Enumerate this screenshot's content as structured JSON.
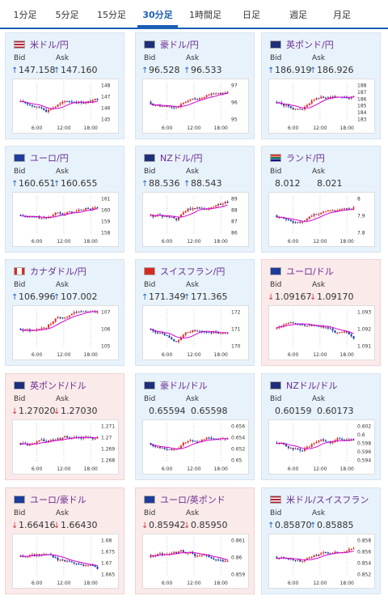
{
  "tabs": [
    {
      "label": "1分足",
      "active": false
    },
    {
      "label": "5分足",
      "active": false
    },
    {
      "label": "15分足",
      "active": false
    },
    {
      "label": "30分足",
      "active": true
    },
    {
      "label": "1時間足",
      "active": false
    },
    {
      "label": "日足",
      "active": false
    },
    {
      "label": "週足",
      "active": false
    },
    {
      "label": "月足",
      "active": false
    }
  ],
  "labels": {
    "bid": "Bid",
    "ask": "Ask"
  },
  "colors": {
    "up_card": "#e8f2fb",
    "down_card": "#fbeaea",
    "candle_up": "#d32f2f",
    "candle_down": "#1a3aa0",
    "ma": "#d400d4",
    "accent": "#1a5fb4"
  },
  "cards": [
    {
      "pair": "米ドル/円",
      "flag": "us-flag",
      "dir": "up",
      "bid": "147.158",
      "ask": "147.160",
      "chart_data": {
        "type": "candlestick",
        "x_ticks": [
          "6:00",
          "12:00",
          "18:00"
        ],
        "y_ticks": [
          "145",
          "146",
          "147",
          "148"
        ],
        "trend": "up"
      }
    },
    {
      "pair": "豪ドル/円",
      "flag": "au-flag",
      "dir": "up",
      "bid": "96.528",
      "ask": "96.533",
      "chart_data": {
        "type": "candlestick",
        "x_ticks": [
          "6:00",
          "12:00",
          "18:00"
        ],
        "y_ticks": [
          "95",
          "96",
          "97"
        ],
        "trend": "up"
      }
    },
    {
      "pair": "英ポンド/円",
      "flag": "gb-flag",
      "dir": "up",
      "bid": "186.919",
      "ask": "186.926",
      "chart_data": {
        "type": "candlestick",
        "x_ticks": [
          "6:00",
          "12:00",
          "18:00"
        ],
        "y_ticks": [
          "183",
          "184",
          "185",
          "186",
          "187",
          "188"
        ],
        "trend": "up"
      }
    },
    {
      "pair": "ユーロ/円",
      "flag": "eu-flag",
      "dir": "up",
      "bid": "160.651",
      "ask": "160.655",
      "chart_data": {
        "type": "candlestick",
        "x_ticks": [
          "6:00",
          "12:00",
          "18:00"
        ],
        "y_ticks": [
          "158",
          "159",
          "160",
          "161"
        ],
        "trend": "up"
      }
    },
    {
      "pair": "NZドル/円",
      "flag": "nz-flag",
      "dir": "up",
      "bid": "88.536",
      "ask": "88.543",
      "chart_data": {
        "type": "candlestick",
        "x_ticks": [
          "6:00",
          "12:00",
          "18:00"
        ],
        "y_ticks": [
          "86",
          "87",
          "88",
          "89"
        ],
        "trend": "up"
      }
    },
    {
      "pair": "ランド/円",
      "flag": "za-flag",
      "dir": "none",
      "bid": "8.012",
      "ask": "8.021",
      "chart_data": {
        "type": "candlestick",
        "x_ticks": [
          "6:00",
          "12:00",
          "18:00"
        ],
        "y_ticks": [
          "7.8",
          "7.9",
          "8"
        ],
        "trend": "up"
      }
    },
    {
      "pair": "カナダドル/円",
      "flag": "ca-flag",
      "dir": "up",
      "bid": "106.996",
      "ask": "107.002",
      "chart_data": {
        "type": "candlestick",
        "x_ticks": [
          "6:00",
          "12:00",
          "18:00"
        ],
        "y_ticks": [
          "105",
          "106",
          "107"
        ],
        "trend": "up"
      }
    },
    {
      "pair": "スイスフラン/円",
      "flag": "ch-flag",
      "dir": "up",
      "bid": "171.349",
      "ask": "171.365",
      "chart_data": {
        "type": "candlestick",
        "x_ticks": [
          "6:00",
          "12:00",
          "18:00"
        ],
        "y_ticks": [
          "170",
          "171",
          "172"
        ],
        "trend": "up"
      }
    },
    {
      "pair": "ユーロ/ドル",
      "flag": "eu-us-flag",
      "dir": "down",
      "bid": "1.09167",
      "ask": "1.09170",
      "chart_data": {
        "type": "candlestick",
        "x_ticks": [
          "6:00",
          "12:00",
          "18:00"
        ],
        "y_ticks": [
          "1.091",
          "1.092",
          "1.093"
        ],
        "trend": "down"
      }
    },
    {
      "pair": "英ポンド/ドル",
      "flag": "gb-us-flag",
      "dir": "down",
      "bid": "1.27020",
      "ask": "1.27030",
      "chart_data": {
        "type": "candlestick",
        "x_ticks": [
          "6:00",
          "12:00",
          "18:00"
        ],
        "y_ticks": [
          "1.268",
          "1.269",
          "1.27",
          "1.271"
        ],
        "trend": "flat"
      }
    },
    {
      "pair": "豪ドル/ドル",
      "flag": "au-us-flag",
      "dir": "none",
      "bid": "0.65594",
      "ask": "0.65598",
      "chart_data": {
        "type": "candlestick",
        "x_ticks": [
          "6:00",
          "12:00",
          "18:00"
        ],
        "y_ticks": [
          "0.65",
          "0.652",
          "0.654",
          "0.656"
        ],
        "trend": "up"
      }
    },
    {
      "pair": "NZドル/ドル",
      "flag": "nz-us-flag",
      "dir": "none",
      "bid": "0.60159",
      "ask": "0.60173",
      "chart_data": {
        "type": "candlestick",
        "x_ticks": [
          "6:00",
          "12:00",
          "18:00"
        ],
        "y_ticks": [
          "0.594",
          "0.596",
          "0.598",
          "0.6",
          "0.602"
        ],
        "trend": "up"
      }
    },
    {
      "pair": "ユーロ/豪ドル",
      "flag": "eu-au-flag",
      "dir": "down",
      "bid": "1.66416",
      "ask": "1.66430",
      "chart_data": {
        "type": "candlestick",
        "x_ticks": [
          "6:00",
          "12:00",
          "18:00"
        ],
        "y_ticks": [
          "1.665",
          "1.67",
          "1.675",
          "1.68"
        ],
        "trend": "down"
      }
    },
    {
      "pair": "ユーロ/英ポンド",
      "flag": "eu-gb-flag",
      "dir": "down",
      "bid": "0.85942",
      "ask": "0.85950",
      "chart_data": {
        "type": "candlestick",
        "x_ticks": [
          "6:00",
          "12:00",
          "18:00"
        ],
        "y_ticks": [
          "0.859",
          "0.86",
          "0.861"
        ],
        "trend": "down"
      }
    },
    {
      "pair": "米ドル/スイスフラン",
      "flag": "us-ch-flag",
      "dir": "up",
      "bid": "0.85870",
      "ask": "0.85885",
      "chart_data": {
        "type": "candlestick",
        "x_ticks": [
          "6:00",
          "12:00",
          "18:00"
        ],
        "y_ticks": [
          "0.852",
          "0.854",
          "0.856",
          "0.858"
        ],
        "trend": "up"
      }
    }
  ]
}
